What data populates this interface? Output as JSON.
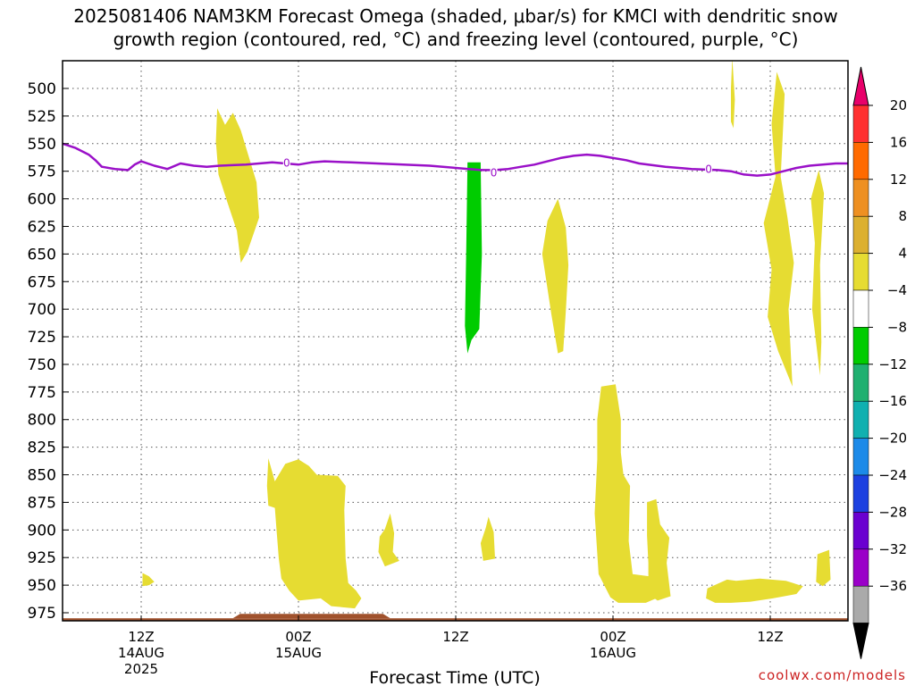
{
  "title": {
    "line1": "2025081406 NAM3KM Forecast Omega (shaded, μbar/s) for KMCI with dendritic snow",
    "line2": "growth region (contoured, red, °C) and freezing level (contoured, purple, °C)"
  },
  "credit": "coolwx.com/models",
  "colors": {
    "omega_fill": "#e6dc32",
    "omega_neg_fill": "#00cc00",
    "freezing_line": "#9a10c8",
    "ground": "#a0522d",
    "grid": "#555555"
  },
  "chart_data": {
    "type": "heatmap",
    "title": "2025081406 NAM3KM Forecast Omega (shaded, μbar/s) for KMCI with dendritic snow growth region (contoured, red, °C) and freezing level (contoured, purple, °C)",
    "xlabel": "Forecast Time (UTC)",
    "ylabel": "",
    "x_unit": "hours since 2025-08-14 06Z",
    "xlim": [
      0,
      60
    ],
    "ylim": [
      985,
      475
    ],
    "y_ticks": [
      500,
      525,
      550,
      575,
      600,
      625,
      650,
      675,
      700,
      725,
      750,
      775,
      800,
      825,
      850,
      875,
      900,
      925,
      950,
      975
    ],
    "x_ticks": [
      {
        "x": 6,
        "label": "12Z",
        "sub1": "14AUG",
        "sub2": "2025"
      },
      {
        "x": 18,
        "label": "00Z",
        "sub1": "15AUG",
        "sub2": ""
      },
      {
        "x": 30,
        "label": "12Z",
        "sub1": "",
        "sub2": ""
      },
      {
        "x": 42,
        "label": "00Z",
        "sub1": "16AUG",
        "sub2": ""
      },
      {
        "x": 54,
        "label": "12Z",
        "sub1": "",
        "sub2": ""
      }
    ],
    "grid": true,
    "colorbar": {
      "labels": [
        "20",
        "16",
        "12",
        "8",
        "4",
        "−4",
        "−8",
        "−12",
        "−16",
        "−20",
        "−24",
        "−28",
        "−32",
        "−36"
      ],
      "colors": [
        "#e8006a",
        "#ff3030",
        "#ff6a00",
        "#ee9022",
        "#dcb030",
        "#e6dc32",
        "#ffffff",
        "#00cc00",
        "#20b070",
        "#10b0b0",
        "#1c8ae8",
        "#1c40e0",
        "#6a00d0",
        "#9a00c8",
        "#aaaaaa",
        "#000000"
      ]
    },
    "freezing_level": {
      "name": "freezing level (0 °C)",
      "contour_label": "0",
      "points": [
        [
          0,
          550
        ],
        [
          1,
          554
        ],
        [
          2,
          560
        ],
        [
          2.5,
          565
        ],
        [
          3,
          571
        ],
        [
          4,
          573
        ],
        [
          5,
          574
        ],
        [
          5.5,
          569
        ],
        [
          6,
          566
        ],
        [
          7,
          570
        ],
        [
          8,
          573
        ],
        [
          9,
          568
        ],
        [
          10,
          570
        ],
        [
          11,
          571
        ],
        [
          12,
          570
        ],
        [
          14,
          569
        ],
        [
          15,
          568
        ],
        [
          16,
          567
        ],
        [
          17,
          568
        ],
        [
          18,
          569
        ],
        [
          19,
          567
        ],
        [
          20,
          566
        ],
        [
          22,
          567
        ],
        [
          24,
          568
        ],
        [
          26,
          569
        ],
        [
          28,
          570
        ],
        [
          30,
          572
        ],
        [
          31,
          573
        ],
        [
          32,
          574
        ],
        [
          33,
          574
        ],
        [
          34,
          573
        ],
        [
          35,
          571
        ],
        [
          36,
          569
        ],
        [
          37,
          566
        ],
        [
          38,
          563
        ],
        [
          39,
          561
        ],
        [
          40,
          560
        ],
        [
          41,
          561
        ],
        [
          42,
          563
        ],
        [
          43,
          565
        ],
        [
          44,
          568
        ],
        [
          46,
          571
        ],
        [
          48,
          573
        ],
        [
          50,
          574
        ],
        [
          51,
          575
        ],
        [
          52,
          578
        ],
        [
          53,
          579
        ],
        [
          54,
          578
        ],
        [
          55,
          575
        ],
        [
          56,
          572
        ],
        [
          57,
          570
        ],
        [
          58,
          569
        ],
        [
          59,
          568
        ],
        [
          60,
          568
        ]
      ],
      "label_positions": [
        [
          17.1,
          567
        ],
        [
          32.9,
          576
        ],
        [
          49.3,
          573
        ]
      ]
    },
    "omega_regions": [
      {
        "value": "4 to 8",
        "color": "yellow",
        "points": [
          [
            11.8,
            518
          ],
          [
            12.4,
            533
          ],
          [
            13,
            522
          ],
          [
            13.6,
            538
          ],
          [
            14.8,
            585
          ],
          [
            15,
            617
          ],
          [
            14.1,
            648
          ],
          [
            13.6,
            658
          ],
          [
            13.3,
            629
          ],
          [
            12.6,
            604
          ],
          [
            11.9,
            578
          ],
          [
            11.7,
            548
          ]
        ]
      },
      {
        "value": "4 to 8",
        "color": "yellow",
        "points": [
          [
            6.1,
            939
          ],
          [
            6.6,
            942
          ],
          [
            7,
            947
          ],
          [
            6.6,
            950
          ],
          [
            6.1,
            951
          ]
        ]
      },
      {
        "value": "4 to 8",
        "color": "yellow",
        "points": [
          [
            15.7,
            835
          ],
          [
            16.2,
            856
          ],
          [
            17,
            840
          ],
          [
            18,
            836
          ],
          [
            18.8,
            842
          ],
          [
            19.4,
            850
          ],
          [
            21,
            851
          ],
          [
            21.6,
            860
          ],
          [
            21.5,
            882
          ],
          [
            21.6,
            926
          ],
          [
            21.8,
            948
          ],
          [
            22.4,
            955
          ],
          [
            22.8,
            962
          ],
          [
            22.3,
            971
          ],
          [
            20.5,
            969
          ],
          [
            19.7,
            962
          ],
          [
            18,
            964
          ],
          [
            17.3,
            955
          ],
          [
            16.7,
            944
          ],
          [
            16.5,
            926
          ],
          [
            16.3,
            896
          ],
          [
            16.2,
            880
          ],
          [
            15.7,
            878
          ],
          [
            15.6,
            860
          ]
        ]
      },
      {
        "value": "4 to 8",
        "color": "yellow",
        "points": [
          [
            24.6,
            899
          ],
          [
            25,
            885
          ],
          [
            25.3,
            903
          ],
          [
            25.2,
            920
          ],
          [
            25.7,
            928
          ],
          [
            24.6,
            933
          ],
          [
            24.1,
            920
          ],
          [
            24.2,
            906
          ]
        ]
      },
      {
        "value": "4 to 8",
        "color": "yellow",
        "points": [
          [
            32.5,
            888
          ],
          [
            32.9,
            902
          ],
          [
            33,
            926
          ],
          [
            32.1,
            928
          ],
          [
            31.9,
            912
          ],
          [
            32.3,
            898
          ]
        ]
      },
      {
        "value": "4 to 8",
        "color": "yellow",
        "points": [
          [
            37.8,
            600
          ],
          [
            38.4,
            626
          ],
          [
            38.6,
            660
          ],
          [
            38.4,
            702
          ],
          [
            38.2,
            738
          ],
          [
            37.8,
            740
          ],
          [
            37.3,
            705
          ],
          [
            36.6,
            650
          ],
          [
            37,
            620
          ]
        ]
      },
      {
        "value": "4 to 8",
        "color": "yellow",
        "points": [
          [
            41.1,
            770
          ],
          [
            42.2,
            768
          ],
          [
            42.6,
            800
          ],
          [
            42.6,
            830
          ],
          [
            42.8,
            850
          ],
          [
            43.3,
            860
          ],
          [
            43.2,
            910
          ],
          [
            43.5,
            940
          ],
          [
            44.8,
            942
          ],
          [
            45.3,
            962
          ],
          [
            44.5,
            966
          ],
          [
            42.4,
            966
          ],
          [
            41.8,
            961
          ],
          [
            40.9,
            940
          ],
          [
            40.6,
            885
          ],
          [
            40.8,
            836
          ],
          [
            40.8,
            800
          ]
        ]
      },
      {
        "value": "4 to 8",
        "color": "yellow",
        "points": [
          [
            44.6,
            875
          ],
          [
            45.3,
            872
          ],
          [
            45.6,
            895
          ],
          [
            46.3,
            907
          ],
          [
            46.1,
            930
          ],
          [
            46.4,
            960
          ],
          [
            45.4,
            964
          ],
          [
            44.7,
            958
          ],
          [
            44.7,
            930
          ],
          [
            44.6,
            905
          ]
        ]
      },
      {
        "value": "4 to 8",
        "color": "yellow",
        "points": [
          [
            51.1,
            472
          ],
          [
            51.3,
            510
          ],
          [
            51.2,
            536
          ],
          [
            51,
            530
          ],
          [
            51,
            500
          ]
        ]
      },
      {
        "value": "4 to 8",
        "color": "yellow",
        "points": [
          [
            54.5,
            485
          ],
          [
            55.1,
            505
          ],
          [
            55,
            530
          ],
          [
            54.8,
            580
          ],
          [
            55.3,
            616
          ],
          [
            55.8,
            658
          ],
          [
            55.4,
            700
          ],
          [
            55.7,
            770
          ],
          [
            54.6,
            738
          ],
          [
            53.8,
            707
          ],
          [
            54.1,
            664
          ],
          [
            53.5,
            622
          ],
          [
            54.4,
            580
          ],
          [
            54.1,
            532
          ]
        ]
      },
      {
        "value": "4 to 8",
        "color": "yellow",
        "points": [
          [
            57.7,
            574
          ],
          [
            58.1,
            595
          ],
          [
            57.8,
            660
          ],
          [
            57.9,
            730
          ],
          [
            57.8,
            760
          ],
          [
            57.2,
            700
          ],
          [
            57.4,
            640
          ],
          [
            57.1,
            600
          ]
        ]
      },
      {
        "value": "4 to 8",
        "color": "yellow",
        "points": [
          [
            49.2,
            953
          ],
          [
            50.7,
            945
          ],
          [
            51.4,
            946
          ],
          [
            53.2,
            944
          ],
          [
            55.2,
            946
          ],
          [
            56.5,
            951
          ],
          [
            56,
            958
          ],
          [
            54.2,
            962
          ],
          [
            52.5,
            965
          ],
          [
            51,
            966
          ],
          [
            49.8,
            966
          ],
          [
            49.1,
            962
          ]
        ]
      },
      {
        "value": "4 to 8",
        "color": "yellow",
        "points": [
          [
            57.6,
            922
          ],
          [
            58.5,
            918
          ],
          [
            58.6,
            945
          ],
          [
            58,
            951
          ],
          [
            57.5,
            947
          ]
        ]
      },
      {
        "value": "-4 to -8",
        "color": "green",
        "points": [
          [
            30.9,
            567
          ],
          [
            31.9,
            567
          ],
          [
            32,
            650
          ],
          [
            31.8,
            718
          ],
          [
            31.2,
            728
          ],
          [
            30.9,
            740
          ],
          [
            30.7,
            715
          ],
          [
            30.8,
            650
          ]
        ]
      }
    ],
    "ground": {
      "base_top_hpa": 980,
      "bump": {
        "x_from": 13,
        "x_to": 25,
        "top_hpa": 976
      }
    }
  }
}
